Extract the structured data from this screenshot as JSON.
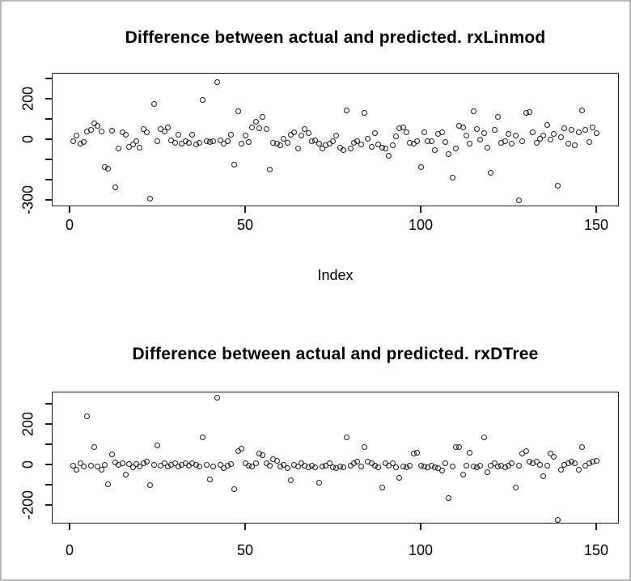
{
  "figure": {
    "background": "#ffffff",
    "frame_color": "#b9b9b9",
    "axis_color": "#1c1c1c",
    "text_color": "#000000",
    "marker": "open-circle"
  },
  "chart_data": [
    {
      "type": "scatter",
      "title": "Difference between actual and predicted. rxLinmod",
      "xlabel": "Index",
      "ylabel": "",
      "grid": false,
      "legend": "none",
      "xlim": [
        -5,
        156
      ],
      "ylim": [
        -332,
        328
      ],
      "x_ticks": [
        {
          "value": 0,
          "label": "0"
        },
        {
          "value": 50,
          "label": "50"
        },
        {
          "value": 100,
          "label": "100"
        },
        {
          "value": 150,
          "label": "150"
        }
      ],
      "y_ticks": [
        {
          "value": 300,
          "label": ""
        },
        {
          "value": 200,
          "label": "200"
        },
        {
          "value": 100,
          "label": ""
        },
        {
          "value": 0,
          "label": "0"
        },
        {
          "value": -100,
          "label": ""
        },
        {
          "value": -200,
          "label": ""
        },
        {
          "value": -300,
          "label": "-300"
        }
      ],
      "x_start_index": 1,
      "values": [
        -11,
        18,
        -22,
        -13,
        38,
        48,
        77,
        68,
        37,
        -136,
        -144,
        43,
        -237,
        -47,
        33,
        24,
        -37,
        -27,
        -11,
        -40,
        51,
        33,
        -295,
        176,
        -9,
        49,
        40,
        57,
        -7,
        -17,
        23,
        -23,
        -9,
        -17,
        23,
        -27,
        -17,
        196,
        -9,
        -13,
        -9,
        284,
        -4,
        -20,
        -9,
        23,
        -124,
        137,
        -23,
        20,
        -13,
        57,
        87,
        53,
        111,
        49,
        -151,
        -17,
        -23,
        -31,
        4,
        -17,
        23,
        36,
        -44,
        20,
        49,
        31,
        -9,
        -4,
        -23,
        -47,
        -31,
        -20,
        -9,
        20,
        -40,
        -53,
        143,
        -47,
        -17,
        -9,
        -27,
        129,
        4,
        -36,
        31,
        -27,
        -40,
        -47,
        -80,
        -31,
        13,
        53,
        57,
        36,
        -17,
        -20,
        -9,
        -137,
        36,
        -9,
        -9,
        -53,
        27,
        36,
        -13,
        -73,
        -191,
        -47,
        67,
        60,
        20,
        -20,
        140,
        49,
        0,
        31,
        -40,
        -164,
        45,
        111,
        -17,
        -9,
        27,
        -23,
        17,
        -300,
        -9,
        129,
        133,
        36,
        -17,
        4,
        17,
        71,
        0,
        27,
        -231,
        9,
        53,
        -23,
        47,
        -31,
        36,
        143,
        45,
        -13,
        57,
        31
      ]
    },
    {
      "type": "scatter",
      "title": "Difference between actual and predicted. rxDTree",
      "xlabel": "",
      "ylabel": "",
      "grid": false,
      "legend": "none",
      "xlim": [
        -5,
        156
      ],
      "ylim": [
        -292,
        360
      ],
      "x_ticks": [
        {
          "value": 0,
          "label": "0"
        },
        {
          "value": 50,
          "label": "50"
        },
        {
          "value": 100,
          "label": "100"
        },
        {
          "value": 150,
          "label": "150"
        }
      ],
      "y_ticks": [
        {
          "value": 300,
          "label": ""
        },
        {
          "value": 200,
          "label": "200"
        },
        {
          "value": 100,
          "label": ""
        },
        {
          "value": 0,
          "label": "0"
        },
        {
          "value": -100,
          "label": ""
        },
        {
          "value": -200,
          "label": "-200"
        }
      ],
      "x_start_index": 1,
      "values": [
        -4,
        -25,
        5,
        -8,
        239,
        -4,
        85,
        -11,
        -27,
        0,
        -99,
        49,
        11,
        -3,
        5,
        -48,
        1,
        -12,
        3,
        -8,
        5,
        16,
        -101,
        0,
        96,
        -4,
        5,
        -8,
        0,
        5,
        -8,
        0,
        5,
        -4,
        5,
        0,
        -11,
        133,
        0,
        -75,
        -8,
        330,
        0,
        -17,
        -4,
        3,
        -122,
        68,
        80,
        5,
        -4,
        -11,
        5,
        53,
        45,
        5,
        -4,
        27,
        19,
        -8,
        0,
        -17,
        -77,
        0,
        -8,
        5,
        -4,
        -13,
        -4,
        -13,
        -91,
        -8,
        -4,
        5,
        -13,
        -17,
        -11,
        -13,
        133,
        -4,
        5,
        13,
        -8,
        85,
        13,
        5,
        -4,
        -13,
        -115,
        5,
        -4,
        5,
        -13,
        -64,
        -8,
        -13,
        -4,
        56,
        59,
        -4,
        -8,
        -13,
        -4,
        -13,
        -17,
        -31,
        5,
        -164,
        -8,
        85,
        85,
        -48,
        -4,
        59,
        -8,
        -13,
        -4,
        133,
        -37,
        -4,
        5,
        -8,
        -4,
        -13,
        -4,
        5,
        -115,
        -4,
        56,
        67,
        13,
        5,
        13,
        0,
        -57,
        -4,
        53,
        40,
        -275,
        -27,
        0,
        5,
        13,
        5,
        -27,
        85,
        -4,
        5,
        13,
        19
      ]
    }
  ]
}
